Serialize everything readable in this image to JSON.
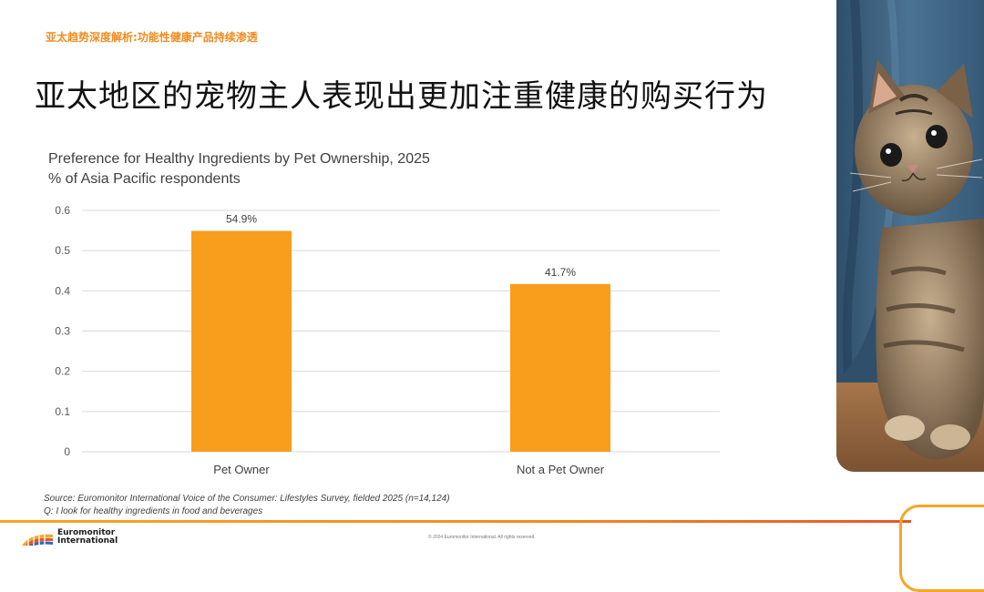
{
  "header": {
    "kicker": "亚太趋势深度解析:功能性健康产品持续渗透",
    "title": "亚太地区的宠物主人表现出更加注重健康的购买行为"
  },
  "chart_data": {
    "type": "bar",
    "title": "Preference for Healthy Ingredients by Pet Ownership, 2025",
    "subtitle": "% of Asia Pacific respondents",
    "categories": [
      "Pet Owner",
      "Not a Pet Owner"
    ],
    "values": [
      0.549,
      0.417
    ],
    "data_labels": [
      "54.9%",
      "41.7%"
    ],
    "y_ticks": [
      "0",
      "0.1",
      "0.2",
      "0.3",
      "0.4",
      "0.5",
      "0.6"
    ],
    "ylim": [
      0,
      0.6
    ],
    "grid": true,
    "bar_color": "#f99d1c"
  },
  "footer": {
    "source": "Source: Euromonitor International Voice of the Consumer: Lifestyles Survey, fielded 2025 (n=14,124)",
    "question": "Q: I look for healthy ingredients in food and beverages",
    "logo_line1": "Euromonitor",
    "logo_line2": "International",
    "copyright": "© 2024 Euromonitor International. All rights reserved."
  },
  "colors": {
    "accent": "#f08c1e",
    "bar": "#f99d1c",
    "grid": "#d9d9d9"
  }
}
